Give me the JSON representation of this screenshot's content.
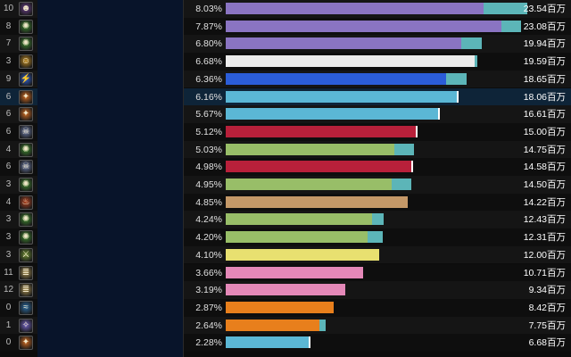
{
  "rows": [
    {
      "rank": "10",
      "icon": "demon-portrait-icon",
      "icon_color": "#6a3f8a",
      "name": "",
      "percent": "8.03%",
      "amount": "23.54百万",
      "bar_color": "#8a74c2",
      "bar_fraction": 0.855,
      "extra_color": "#5cb5b8",
      "extra_fraction": 0.145,
      "highlight": false
    },
    {
      "rank": "8",
      "icon": "nature-swirl-icon",
      "icon_color": "#3f8a2e",
      "name": "",
      "percent": "7.87%",
      "amount": "23.08百万",
      "bar_color": "#8a74c2",
      "bar_fraction": 0.915,
      "extra_color": "#5cb5b8",
      "extra_fraction": 0.065,
      "highlight": false
    },
    {
      "rank": "7",
      "icon": "nature-swirl-icon",
      "icon_color": "#3f8a2e",
      "name": "",
      "percent": "6.80%",
      "amount": "19.94百万",
      "bar_color": "#8a74c2",
      "bar_fraction": 0.78,
      "extra_color": "#5cb5b8",
      "extra_fraction": 0.07,
      "highlight": false
    },
    {
      "rank": "3",
      "icon": "golden-face-icon",
      "icon_color": "#c08a20",
      "name": "",
      "percent": "6.68%",
      "amount": "19.59百万",
      "bar_color": "#ececec",
      "bar_fraction": 0.825,
      "extra_color": "#5cb5b8",
      "extra_fraction": 0.008,
      "highlight": false
    },
    {
      "rank": "9",
      "icon": "lightning-icon",
      "icon_color": "#2f5fd0",
      "name": "",
      "percent": "6.36%",
      "amount": "18.65百万",
      "bar_color": "#2b5dd8",
      "bar_fraction": 0.73,
      "extra_color": "#5cb5b8",
      "extra_fraction": 0.068,
      "highlight": false
    },
    {
      "rank": "6",
      "icon": "fire-wand-icon",
      "icon_color": "#d06a20",
      "name": "",
      "percent": "6.16%",
      "amount": "18.06百万",
      "bar_color": "#5bb7d5",
      "bar_fraction": 0.765,
      "extra_color": "#ffffff",
      "extra_fraction": 0.006,
      "highlight": true
    },
    {
      "rank": "6",
      "icon": "fire-wand-icon",
      "icon_color": "#d06a20",
      "name": "",
      "percent": "5.67%",
      "amount": "16.61百万",
      "bar_color": "#5bb7d5",
      "bar_fraction": 0.705,
      "extra_color": "#ffffff",
      "extra_fraction": 0.006,
      "highlight": false
    },
    {
      "rank": "6",
      "icon": "skull-icon",
      "icon_color": "#6a7aa8",
      "name": "",
      "percent": "5.12%",
      "amount": "15.00百万",
      "bar_color": "#b8203a",
      "bar_fraction": 0.63,
      "extra_color": "#ffffff",
      "extra_fraction": 0.006,
      "highlight": false
    },
    {
      "rank": "4",
      "icon": "nature-swirl-icon",
      "icon_color": "#3f8a2e",
      "name": "",
      "percent": "5.03%",
      "amount": "14.75百万",
      "bar_color": "#98be68",
      "bar_fraction": 0.558,
      "extra_color": "#5cb5b8",
      "extra_fraction": 0.065,
      "highlight": false
    },
    {
      "rank": "6",
      "icon": "skull-icon",
      "icon_color": "#6a7aa8",
      "name": "",
      "percent": "4.98%",
      "amount": "14.58百万",
      "bar_color": "#b8203a",
      "bar_fraction": 0.615,
      "extra_color": "#ffffff",
      "extra_fraction": 0.006,
      "highlight": false
    },
    {
      "rank": "3",
      "icon": "nature-swirl-icon",
      "icon_color": "#3f8a2e",
      "name": "",
      "percent": "4.95%",
      "amount": "14.50百万",
      "bar_color": "#98be68",
      "bar_fraction": 0.55,
      "extra_color": "#5cb5b8",
      "extra_fraction": 0.065,
      "highlight": false
    },
    {
      "rank": "4",
      "icon": "flame-icon",
      "icon_color": "#b0401e",
      "name": "",
      "percent": "4.85%",
      "amount": "14.22百万",
      "bar_color": "#c49868",
      "bar_fraction": 0.605,
      "extra_color": "#5cb5b8",
      "extra_fraction": 0.0,
      "highlight": false
    },
    {
      "rank": "3",
      "icon": "nature-swirl-icon",
      "icon_color": "#3f8a2e",
      "name": "",
      "percent": "4.24%",
      "amount": "12.43百万",
      "bar_color": "#98be68",
      "bar_fraction": 0.485,
      "extra_color": "#5cb5b8",
      "extra_fraction": 0.04,
      "highlight": false
    },
    {
      "rank": "3",
      "icon": "nature-swirl-icon",
      "icon_color": "#3f8a2e",
      "name": "",
      "percent": "4.20%",
      "amount": "12.31百万",
      "bar_color": "#98be68",
      "bar_fraction": 0.47,
      "extra_color": "#5cb5b8",
      "extra_fraction": 0.052,
      "highlight": false
    },
    {
      "rank": "3",
      "icon": "sword-slash-icon",
      "icon_color": "#6a8a2e",
      "name": "",
      "percent": "4.10%",
      "amount": "12.00百万",
      "bar_color": "#e8e070",
      "bar_fraction": 0.51,
      "extra_color": "#5cb5b8",
      "extra_fraction": 0.0,
      "highlight": false
    },
    {
      "rank": "11",
      "icon": "scroll-icon",
      "icon_color": "#a89050",
      "name": "",
      "percent": "3.66%",
      "amount": "10.71百万",
      "bar_color": "#e488b8",
      "bar_fraction": 0.455,
      "extra_color": "#5cb5b8",
      "extra_fraction": 0.0,
      "highlight": false
    },
    {
      "rank": "12",
      "icon": "scroll-icon",
      "icon_color": "#a89050",
      "name": "",
      "percent": "3.19%",
      "amount": "9.34百万",
      "bar_color": "#e488b8",
      "bar_fraction": 0.396,
      "extra_color": "#5cb5b8",
      "extra_fraction": 0.0,
      "highlight": false
    },
    {
      "rank": "0",
      "icon": "wind-icon",
      "icon_color": "#2a6aa0",
      "name": "",
      "percent": "2.87%",
      "amount": "8.42百万",
      "bar_color": "#e87f1c",
      "bar_fraction": 0.357,
      "extra_color": "#5cb5b8",
      "extra_fraction": 0.0,
      "highlight": false
    },
    {
      "rank": "1",
      "icon": "arcane-orb-icon",
      "icon_color": "#7060c0",
      "name": "",
      "percent": "2.64%",
      "amount": "7.75百万",
      "bar_color": "#e87f1c",
      "bar_fraction": 0.31,
      "extra_color": "#5cb5b8",
      "extra_fraction": 0.02,
      "highlight": false
    },
    {
      "rank": "0",
      "icon": "fire-wand-icon",
      "icon_color": "#d06a20",
      "name": "",
      "percent": "2.28%",
      "amount": "6.68百万",
      "bar_color": "#5bb7d5",
      "bar_fraction": 0.275,
      "extra_color": "#ffffff",
      "extra_fraction": 0.006,
      "highlight": false
    }
  ]
}
